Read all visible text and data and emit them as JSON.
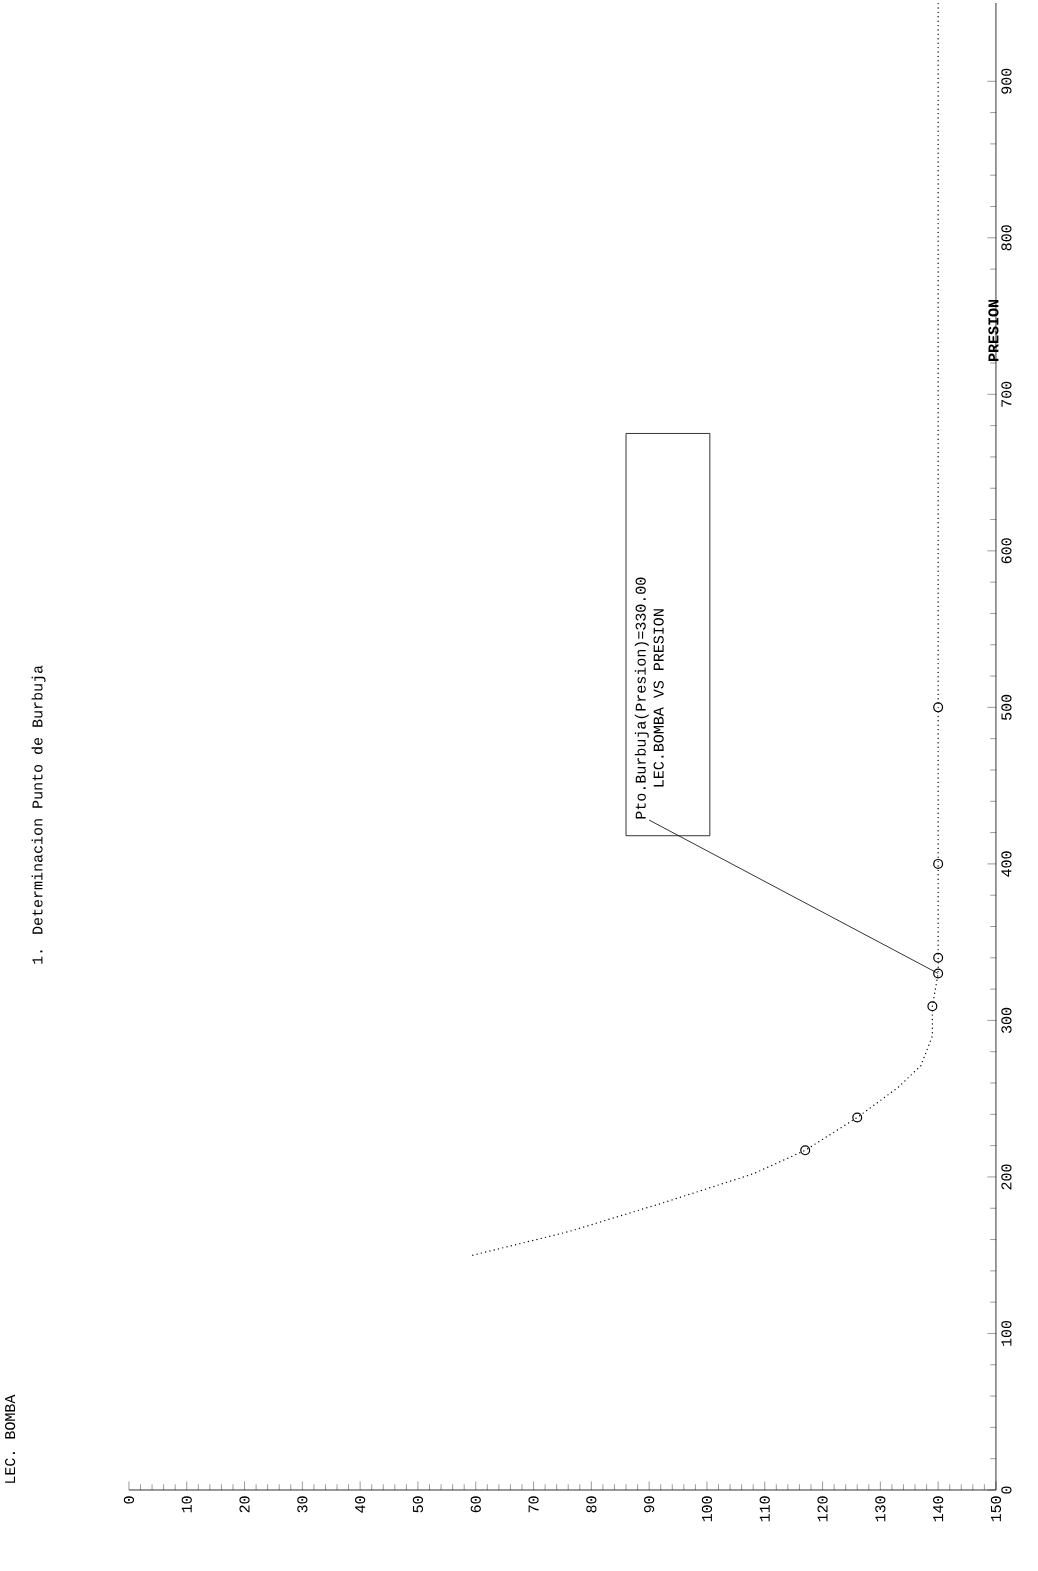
{
  "chart_data": {
    "type": "line",
    "title": "1. Determinacion Punto de Burbuja",
    "ylabel": "PRESION",
    "xlim": [
      0,
      150
    ],
    "xticks": [
      0,
      10,
      20,
      30,
      40,
      50,
      60,
      70,
      80,
      90,
      100,
      110,
      120,
      130,
      140,
      150
    ],
    "grid": false,
    "ylim": [
      0,
      950
    ],
    "yticks": [
      0,
      100,
      200,
      300,
      400,
      500,
      600,
      700,
      800,
      900
    ],
    "series": [
      {
        "color": "#000000",
        "line_style": "dotted",
        "marker": "none",
        "x": [
          59.5,
          76,
          92,
          108,
          117,
          126,
          133,
          137,
          139,
          139,
          140,
          140,
          140,
          140,
          140
        ],
        "values": [
          150,
          165,
          183,
          202,
          217,
          238,
          257,
          271,
          290,
          309,
          330,
          340,
          400,
          500,
          950
        ]
      },
      {
        "type": "scatter",
        "color": "#000000",
        "marker": "circle",
        "x": [
          117,
          126,
          139,
          140,
          140,
          140,
          140
        ],
        "values": [
          217,
          238,
          309,
          330,
          340,
          400,
          500
        ]
      }
    ],
    "annotations": [
      "LEC. BOMBA",
      {
        "text": "Pto.Burbuja(Presion)=330.00",
        "x": 140,
        "y": 330
      },
      "LEC.BOMBA VS PRESION"
    ]
  }
}
